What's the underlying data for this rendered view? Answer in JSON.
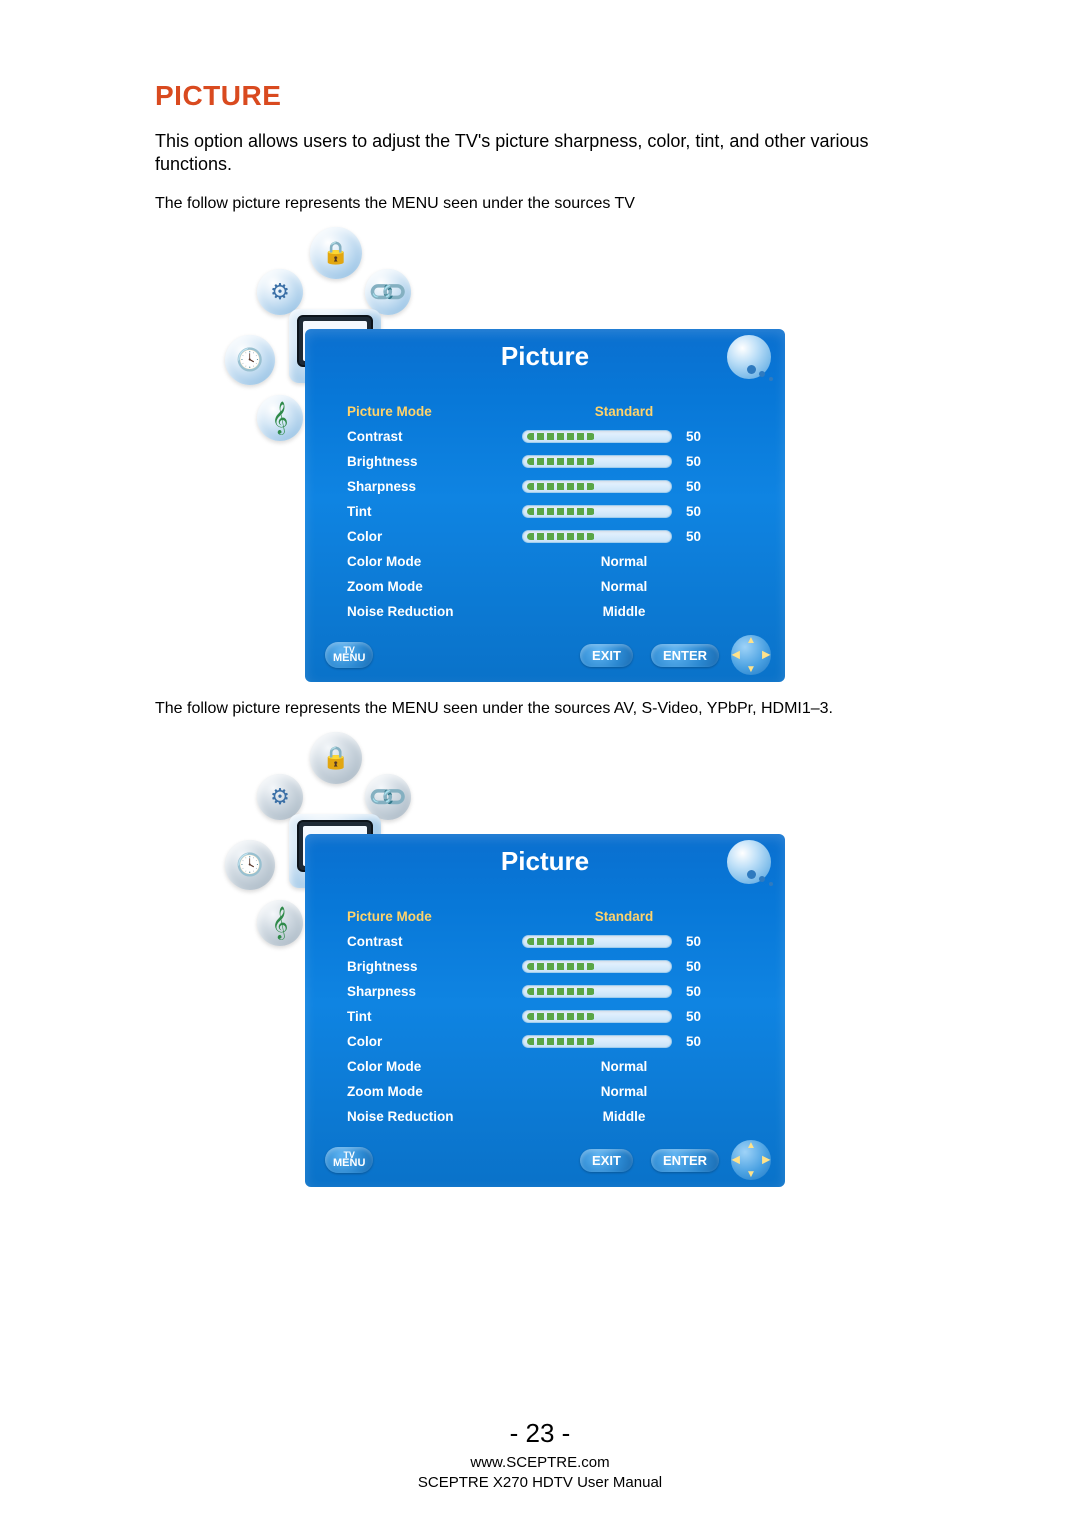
{
  "page": {
    "title": "PICTURE",
    "intro": "This option allows users to adjust the TV's picture sharpness, color, tint, and other various functions.",
    "caption_tv": "The follow picture represents the MENU seen under the sources TV",
    "caption_av": "The follow picture represents the MENU seen under the sources AV, S-Video, YPbPr, HDMI1–3.",
    "number": "- 23 -",
    "footer_url": "www.SCEPTRE.com",
    "footer_doc": "SCEPTRE X270 HDTV User Manual"
  },
  "colors": {
    "title": "#d94a1f",
    "panel_gradient_top": "#0a6fcf",
    "panel_gradient_bottom": "#0a72c9",
    "highlight_text": "#ffd36b",
    "normal_text": "#ffffff",
    "slider_fill": "#5aa646",
    "page_bg": "#ffffff"
  },
  "menu": {
    "panel_title": "Picture",
    "buttons": {
      "menu_top": "TV",
      "menu_bottom": "MENU",
      "exit": "EXIT",
      "enter": "ENTER"
    },
    "settings": [
      {
        "label": "Picture Mode",
        "type": "text",
        "value": "Standard",
        "highlight": true
      },
      {
        "label": "Contrast",
        "type": "slider",
        "value": 50
      },
      {
        "label": "Brightness",
        "type": "slider",
        "value": 50
      },
      {
        "label": "Sharpness",
        "type": "slider",
        "value": 50
      },
      {
        "label": "Tint",
        "type": "slider",
        "value": 50
      },
      {
        "label": "Color",
        "type": "slider",
        "value": 50
      },
      {
        "label": "Color Mode",
        "type": "text",
        "value": "Normal"
      },
      {
        "label": "Zoom Mode",
        "type": "text",
        "value": "Normal"
      },
      {
        "label": "Noise Reduction",
        "type": "text",
        "value": "Middle"
      }
    ]
  },
  "nav_icons": [
    {
      "name": "lock-icon",
      "glyph": "🔒",
      "class": "b-lock",
      "gclass": "g-lock"
    },
    {
      "name": "gear-icon",
      "glyph": "⚙",
      "class": "b-gear",
      "gclass": "g-gear"
    },
    {
      "name": "link-icon",
      "glyph": "🔗",
      "class": "b-link",
      "gclass": "g-link"
    },
    {
      "name": "clock-icon",
      "glyph": "🕓",
      "class": "b-clock",
      "gclass": "g-clock"
    },
    {
      "name": "music-icon",
      "glyph": "𝄞",
      "class": "b-music",
      "gclass": "g-music"
    }
  ]
}
